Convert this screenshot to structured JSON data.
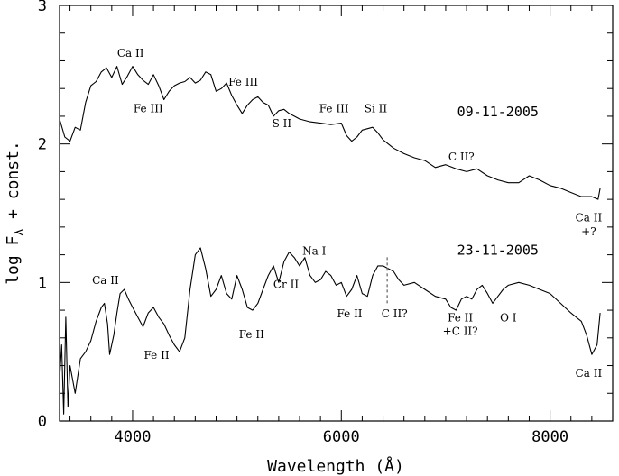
{
  "chart_data": {
    "type": "line",
    "xlabel": "Wavelength (Å)",
    "ylabel": "log F_λ + const.",
    "xlim": [
      3300,
      8600
    ],
    "ylim": [
      0,
      3
    ],
    "x_ticks": [
      4000,
      6000,
      8000
    ],
    "x_tick_labels": [
      "4000",
      "6000",
      "8000"
    ],
    "y_ticks": [
      0,
      1,
      2,
      3
    ],
    "y_tick_labels": [
      "0",
      "1",
      "2",
      "3"
    ],
    "grid": false,
    "legend": "none",
    "series": [
      {
        "name": "09-11-2005",
        "x": [
          3300,
          3350,
          3400,
          3450,
          3500,
          3550,
          3600,
          3650,
          3700,
          3750,
          3800,
          3850,
          3900,
          3950,
          4000,
          4050,
          4100,
          4150,
          4200,
          4250,
          4300,
          4350,
          4400,
          4450,
          4500,
          4550,
          4600,
          4650,
          4700,
          4750,
          4800,
          4850,
          4900,
          4950,
          5000,
          5050,
          5100,
          5150,
          5200,
          5250,
          5300,
          5350,
          5400,
          5450,
          5500,
          5550,
          5600,
          5700,
          5800,
          5900,
          6000,
          6050,
          6100,
          6150,
          6200,
          6300,
          6350,
          6400,
          6450,
          6500,
          6600,
          6700,
          6800,
          6900,
          7000,
          7100,
          7200,
          7300,
          7400,
          7500,
          7600,
          7700,
          7800,
          7900,
          8000,
          8100,
          8200,
          8300,
          8400,
          8460,
          8480
        ],
        "values": [
          2.18,
          2.05,
          2.02,
          2.12,
          2.1,
          2.3,
          2.42,
          2.45,
          2.52,
          2.55,
          2.48,
          2.56,
          2.43,
          2.49,
          2.56,
          2.5,
          2.46,
          2.43,
          2.5,
          2.42,
          2.32,
          2.38,
          2.42,
          2.44,
          2.45,
          2.48,
          2.44,
          2.46,
          2.52,
          2.5,
          2.38,
          2.4,
          2.44,
          2.35,
          2.28,
          2.22,
          2.28,
          2.32,
          2.34,
          2.3,
          2.28,
          2.2,
          2.24,
          2.25,
          2.22,
          2.2,
          2.18,
          2.16,
          2.15,
          2.14,
          2.15,
          2.06,
          2.02,
          2.05,
          2.1,
          2.12,
          2.08,
          2.03,
          2.0,
          1.97,
          1.93,
          1.9,
          1.88,
          1.83,
          1.85,
          1.82,
          1.8,
          1.82,
          1.77,
          1.74,
          1.72,
          1.72,
          1.77,
          1.74,
          1.7,
          1.68,
          1.65,
          1.62,
          1.62,
          1.6,
          1.68
        ]
      },
      {
        "name": "23-11-2005",
        "x": [
          3300,
          3320,
          3340,
          3360,
          3380,
          3400,
          3450,
          3500,
          3550,
          3600,
          3650,
          3700,
          3730,
          3760,
          3780,
          3820,
          3850,
          3880,
          3920,
          3960,
          4000,
          4050,
          4100,
          4150,
          4200,
          4250,
          4300,
          4350,
          4400,
          4450,
          4500,
          4550,
          4600,
          4650,
          4700,
          4750,
          4800,
          4850,
          4900,
          4950,
          5000,
          5050,
          5100,
          5150,
          5200,
          5250,
          5300,
          5350,
          5400,
          5450,
          5500,
          5550,
          5600,
          5650,
          5700,
          5750,
          5800,
          5850,
          5900,
          5950,
          6000,
          6050,
          6100,
          6150,
          6200,
          6250,
          6300,
          6350,
          6400,
          6450,
          6500,
          6550,
          6600,
          6700,
          6800,
          6900,
          7000,
          7050,
          7100,
          7150,
          7200,
          7250,
          7300,
          7350,
          7400,
          7450,
          7500,
          7550,
          7600,
          7700,
          7800,
          7900,
          8000,
          8100,
          8200,
          8250,
          8300,
          8350,
          8400,
          8450,
          8480
        ],
        "values": [
          0.3,
          0.55,
          0.05,
          0.75,
          0.1,
          0.4,
          0.2,
          0.45,
          0.5,
          0.58,
          0.72,
          0.82,
          0.85,
          0.7,
          0.48,
          0.62,
          0.78,
          0.92,
          0.95,
          0.88,
          0.82,
          0.75,
          0.68,
          0.78,
          0.82,
          0.75,
          0.7,
          0.62,
          0.55,
          0.5,
          0.6,
          0.95,
          1.2,
          1.25,
          1.1,
          0.9,
          0.95,
          1.05,
          0.92,
          0.88,
          1.05,
          0.95,
          0.82,
          0.8,
          0.85,
          0.95,
          1.05,
          1.12,
          1.0,
          1.15,
          1.22,
          1.18,
          1.12,
          1.18,
          1.05,
          1.0,
          1.02,
          1.08,
          1.05,
          0.98,
          1.0,
          0.9,
          0.95,
          1.05,
          0.92,
          0.9,
          1.05,
          1.12,
          1.12,
          1.1,
          1.08,
          1.02,
          0.98,
          1.0,
          0.95,
          0.9,
          0.88,
          0.82,
          0.8,
          0.88,
          0.9,
          0.88,
          0.95,
          0.98,
          0.92,
          0.85,
          0.9,
          0.95,
          0.98,
          1.0,
          0.98,
          0.95,
          0.92,
          0.85,
          0.78,
          0.75,
          0.72,
          0.62,
          0.48,
          0.55,
          0.78
        ]
      }
    ],
    "date_labels": [
      {
        "text": "09-11-2005",
        "x": 7500,
        "y": 2.2
      },
      {
        "text": "23-11-2005",
        "x": 7500,
        "y": 1.2
      }
    ],
    "annotations": [
      {
        "text": "Ca II",
        "x": 3980,
        "y": 2.63
      },
      {
        "text": "Fe III",
        "x": 4150,
        "y": 2.23
      },
      {
        "text": "Fe III",
        "x": 5060,
        "y": 2.42
      },
      {
        "text": "S II",
        "x": 5430,
        "y": 2.12
      },
      {
        "text": "Fe III",
        "x": 5930,
        "y": 2.23
      },
      {
        "text": "Si II",
        "x": 6330,
        "y": 2.23
      },
      {
        "text": "C II?",
        "x": 7150,
        "y": 1.88
      },
      {
        "text": "Ca II",
        "x": 8370,
        "y": 1.44
      },
      {
        "text": "+?",
        "x": 8370,
        "y": 1.34
      },
      {
        "text": "Ca II",
        "x": 3740,
        "y": 0.99
      },
      {
        "text": "Fe II",
        "x": 4230,
        "y": 0.45
      },
      {
        "text": "Fe II",
        "x": 5140,
        "y": 0.6
      },
      {
        "text": "Cr II",
        "x": 5470,
        "y": 0.96
      },
      {
        "text": "Na I",
        "x": 5740,
        "y": 1.2
      },
      {
        "text": "Fe II",
        "x": 6080,
        "y": 0.75
      },
      {
        "text": "C II?",
        "x": 6510,
        "y": 0.75
      },
      {
        "text": "Fe II",
        "x": 7140,
        "y": 0.72
      },
      {
        "text": "+C II?",
        "x": 7140,
        "y": 0.62
      },
      {
        "text": "O I",
        "x": 7600,
        "y": 0.72
      },
      {
        "text": "Ca II",
        "x": 8370,
        "y": 0.32
      }
    ],
    "vertical_marker": {
      "x": 6440,
      "y_range": [
        0.85,
        1.2
      ],
      "style": "dashed",
      "color": "#888888"
    }
  }
}
